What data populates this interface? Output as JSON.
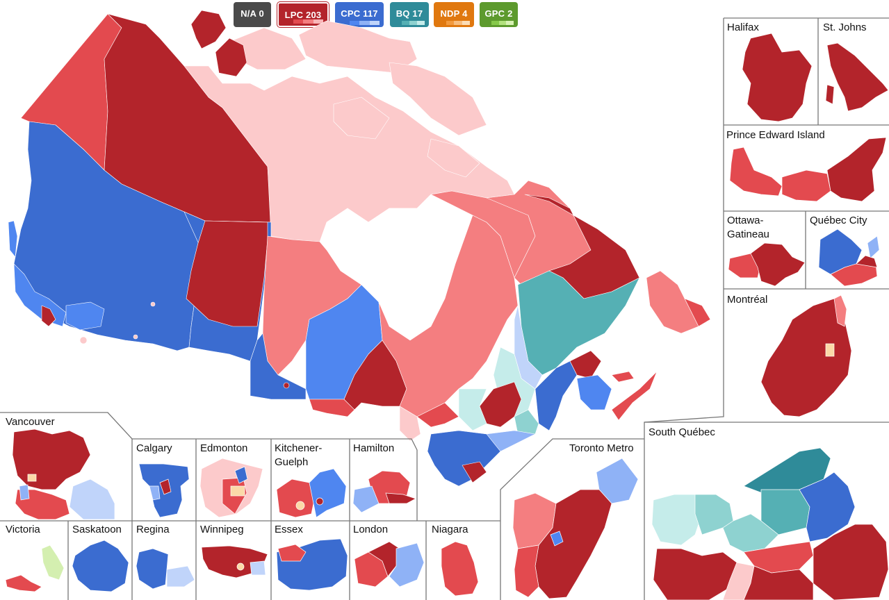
{
  "legend": {
    "badges": [
      {
        "id": "na",
        "label": "N/A 0",
        "color": "#4a4a4a",
        "shades": []
      },
      {
        "id": "lpc",
        "label": "LPC 203",
        "color": "#b3242b",
        "shades": [
          "#b3242b",
          "#e34a4f",
          "#f47e80",
          "#f9b6b8"
        ],
        "selected": "true"
      },
      {
        "id": "cpc",
        "label": "CPC 117",
        "color": "#3b6cd0",
        "shades": [
          "#3b6cd0",
          "#4f86f0",
          "#8fb2f6",
          "#c0d4fa"
        ]
      },
      {
        "id": "bq",
        "label": "BQ 17",
        "color": "#2f8b99",
        "shades": [
          "#2f8b99",
          "#55b0b4",
          "#8ed2d0",
          "#c5ecea"
        ]
      },
      {
        "id": "ndp",
        "label": "NDP 4",
        "color": "#e0780f",
        "shades": [
          "#e0780f",
          "#f29a3e",
          "#f7bd7e",
          "#fbdcb6"
        ]
      },
      {
        "id": "gpc",
        "label": "GPC 2",
        "color": "#5d9a2d",
        "shades": [
          "#5d9a2d",
          "#86c94a",
          "#b2e27d",
          "#d8f1b4"
        ]
      }
    ]
  },
  "insets": [
    {
      "name": "Halifax",
      "label": "Halifax"
    },
    {
      "name": "St. Johns",
      "label": "St. Johns"
    },
    {
      "name": "Prince Edward Island",
      "label": "Prince Edward Island"
    },
    {
      "name": "Ottawa-Gatineau",
      "label": "Ottawa-\nGatineau"
    },
    {
      "name": "Québec City",
      "label": "Québec City"
    },
    {
      "name": "Montréal",
      "label": "Montréal"
    },
    {
      "name": "South Québec",
      "label": "South Québec"
    },
    {
      "name": "Toronto Metro",
      "label": "Toronto Metro"
    },
    {
      "name": "Vancouver",
      "label": "Vancouver"
    },
    {
      "name": "Calgary",
      "label": "Calgary"
    },
    {
      "name": "Edmonton",
      "label": "Edmonton"
    },
    {
      "name": "Kitchener-Guelph",
      "label": "Kitchener-\nGuelph"
    },
    {
      "name": "Hamilton",
      "label": "Hamilton"
    },
    {
      "name": "Victoria",
      "label": "Victoria"
    },
    {
      "name": "Saskatoon",
      "label": "Saskatoon"
    },
    {
      "name": "Regina",
      "label": "Regina"
    },
    {
      "name": "Winnipeg",
      "label": "Winnipeg"
    },
    {
      "name": "Essex",
      "label": "Essex"
    },
    {
      "name": "London",
      "label": "London"
    },
    {
      "name": "Niagara",
      "label": "Niagara"
    }
  ],
  "colors": {
    "lpc_dark": "#b3242b",
    "lpc_mid": "#e34a4f",
    "lpc_light": "#f47e80",
    "lpc_pale": "#fccacb",
    "cpc_dark": "#3b6cd0",
    "cpc_mid": "#4f86f0",
    "cpc_light": "#8fb2f6",
    "cpc_pale": "#c0d4fa",
    "bq_dark": "#2f8b99",
    "bq_mid": "#55b0b4",
    "bq_light": "#8ed2d0",
    "bq_pale": "#c5ecea",
    "ndp_pale": "#fbd9a8",
    "gpc_pale": "#d4efb0"
  }
}
